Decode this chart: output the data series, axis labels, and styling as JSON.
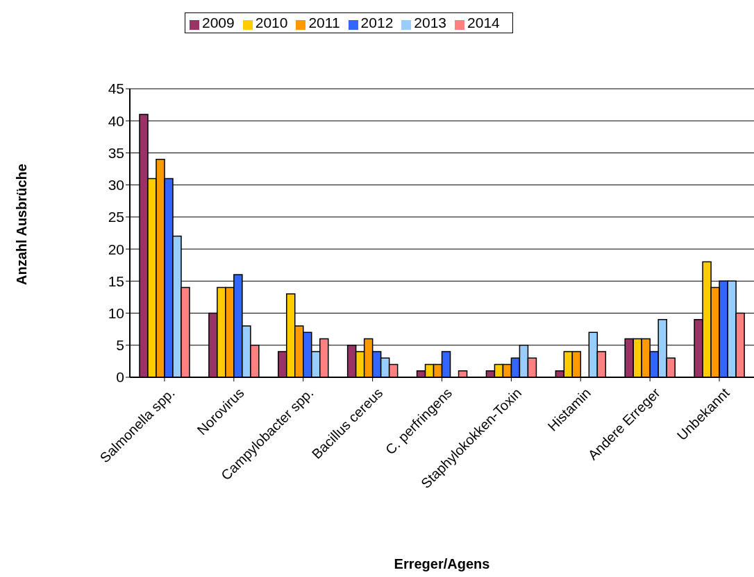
{
  "chart_data": {
    "type": "bar",
    "xlabel": "Erreger/Agens",
    "ylabel": "Anzahl Ausbrüche",
    "categories": [
      "Salmonella spp.",
      "Norovirus",
      "Campylobacter spp.",
      "Bacillus cereus",
      "C. perfringens",
      "Staphylokokken-Toxin",
      "Histamin",
      "Andere Erreger",
      "Unbekannt"
    ],
    "series": [
      {
        "name": "2009",
        "color": "#993366",
        "values": [
          41,
          10,
          4,
          5,
          1,
          1,
          1,
          6,
          9
        ]
      },
      {
        "name": "2010",
        "color": "#ffcc00",
        "values": [
          31,
          14,
          13,
          4,
          2,
          2,
          4,
          6,
          18
        ]
      },
      {
        "name": "2011",
        "color": "#ff9900",
        "values": [
          34,
          14,
          8,
          6,
          2,
          2,
          4,
          6,
          14
        ]
      },
      {
        "name": "2012",
        "color": "#3366ff",
        "values": [
          31,
          16,
          7,
          4,
          4,
          3,
          0,
          4,
          15
        ]
      },
      {
        "name": "2013",
        "color": "#99ccff",
        "values": [
          22,
          8,
          4,
          3,
          0,
          5,
          7,
          9,
          15
        ]
      },
      {
        "name": "2014",
        "color": "#ff8080",
        "values": [
          14,
          5,
          6,
          2,
          1,
          3,
          4,
          3,
          10
        ]
      }
    ],
    "ylim": [
      0,
      45
    ],
    "yticks": [
      0,
      5,
      10,
      15,
      20,
      25,
      30,
      35,
      40,
      45
    ],
    "grid": "y",
    "legend": "top"
  }
}
